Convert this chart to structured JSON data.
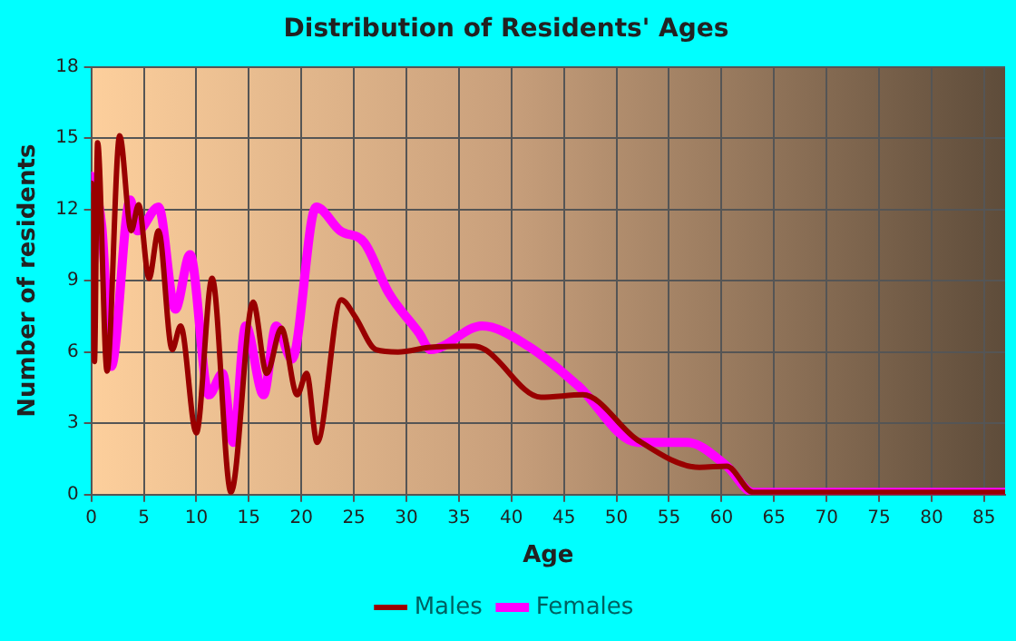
{
  "chart_data": {
    "type": "line",
    "title": "Distribution of Residents' Ages",
    "xlabel": "Age",
    "ylabel": "Number of residents",
    "xlim": [
      0,
      87
    ],
    "xticks": [
      0,
      5,
      10,
      15,
      20,
      25,
      30,
      35,
      40,
      45,
      50,
      55,
      60,
      65,
      70,
      75,
      80,
      85
    ],
    "ylim": [
      0,
      18
    ],
    "yticks": [
      0,
      3,
      6,
      9,
      12,
      15,
      18
    ],
    "grid": true,
    "legend": "bottom",
    "marker": "none",
    "line_style": "solid",
    "series": [
      {
        "name": "Males",
        "color": "#990000",
        "x": [
          0,
          0.3,
          0.6,
          1.5,
          2.7,
          3.8,
          4.5,
          5.5,
          6.4,
          7.7,
          8.5,
          10,
          11.5,
          13.3,
          15.4,
          16.7,
          18.1,
          19.6,
          20.5,
          21.5,
          23.8,
          25.1,
          27.1,
          29.2,
          32.3,
          36.4,
          37.5,
          42.8,
          46.8,
          52,
          57.9,
          60.5,
          63,
          87
        ],
        "values": [
          13.1,
          5.6,
          14.8,
          5.2,
          15.1,
          11.1,
          12.2,
          9.1,
          11.1,
          6.1,
          7.1,
          2.6,
          9.1,
          0.1,
          8.1,
          5.1,
          7.0,
          4.2,
          5.1,
          2.2,
          8.2,
          7.5,
          6.1,
          6.0,
          6.2,
          6.25,
          6.1,
          4.1,
          4.2,
          2.3,
          1.15,
          1.2,
          0.1,
          0.1
        ]
      },
      {
        "name": "Females",
        "color": "#ff00ff",
        "x": [
          0,
          1,
          1.9,
          3.7,
          4.4,
          6.4,
          8,
          9.4,
          11.2,
          12.5,
          13.5,
          14.7,
          16.4,
          17.6,
          19.1,
          21.4,
          23.7,
          26,
          28.3,
          31.2,
          32.3,
          37.2,
          41.6,
          46.3,
          52,
          56.7,
          60.5,
          63,
          87
        ],
        "values": [
          13.4,
          11.3,
          5.4,
          12.4,
          11.1,
          12.1,
          7.8,
          10.1,
          4.2,
          5.1,
          2.2,
          7.1,
          4.2,
          7.1,
          5.7,
          12.1,
          11.1,
          10.6,
          8.5,
          6.8,
          6.1,
          7.1,
          6.25,
          4.6,
          2.2,
          2.2,
          1.2,
          0.1,
          0.1
        ]
      }
    ]
  }
}
